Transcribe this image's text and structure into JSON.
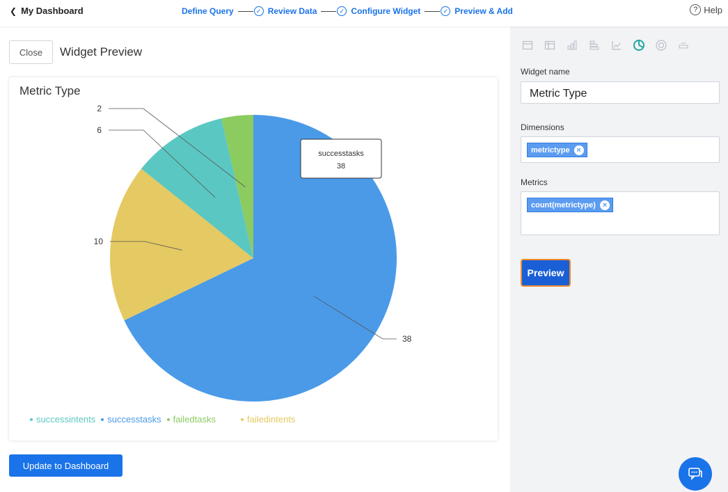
{
  "header": {
    "back_label": "My Dashboard",
    "steps": [
      "Define Query",
      "Review Data",
      "Configure Widget",
      "Preview & Add"
    ],
    "help_label": "Help"
  },
  "preview": {
    "close_label": "Close",
    "title": "Widget Preview",
    "update_label": "Update to Dashboard"
  },
  "chart_data": {
    "type": "pie",
    "title": "Metric Type",
    "slices": [
      {
        "name": "successtasks",
        "value": 38,
        "color": "#4a9ae8"
      },
      {
        "name": "failedintents",
        "value": 10,
        "color": "#e5c962"
      },
      {
        "name": "successintents",
        "value": 6,
        "color": "#5bc7c2"
      },
      {
        "name": "failedtasks",
        "value": 2,
        "color": "#8ccb60"
      }
    ],
    "legend": [
      {
        "name": "successintents",
        "color": "#5bc7c2"
      },
      {
        "name": "successtasks",
        "color": "#4a9ae8"
      },
      {
        "name": "failedtasks",
        "color": "#8ccb60"
      },
      {
        "name": "failedintents",
        "color": "#e5c962"
      }
    ],
    "tooltip": {
      "name": "successtasks",
      "value": "38"
    },
    "legend_position": "bottom-left"
  },
  "panel": {
    "chart_type_icons": [
      "table-icon",
      "pivot-icon",
      "bar-chart-icon",
      "horizontal-bar-icon",
      "line-chart-icon",
      "pie-chart-icon",
      "donut-icon",
      "metric-icon"
    ],
    "widget_name_label": "Widget name",
    "widget_name_value": "Metric Type",
    "dimensions_label": "Dimensions",
    "dimension_chip": "metrictype",
    "metrics_label": "Metrics",
    "metric_chip": "count(metrictype)",
    "preview_label": "Preview"
  },
  "colors": {
    "accent": "#1a73e8",
    "highlight": "#f08a2b"
  }
}
